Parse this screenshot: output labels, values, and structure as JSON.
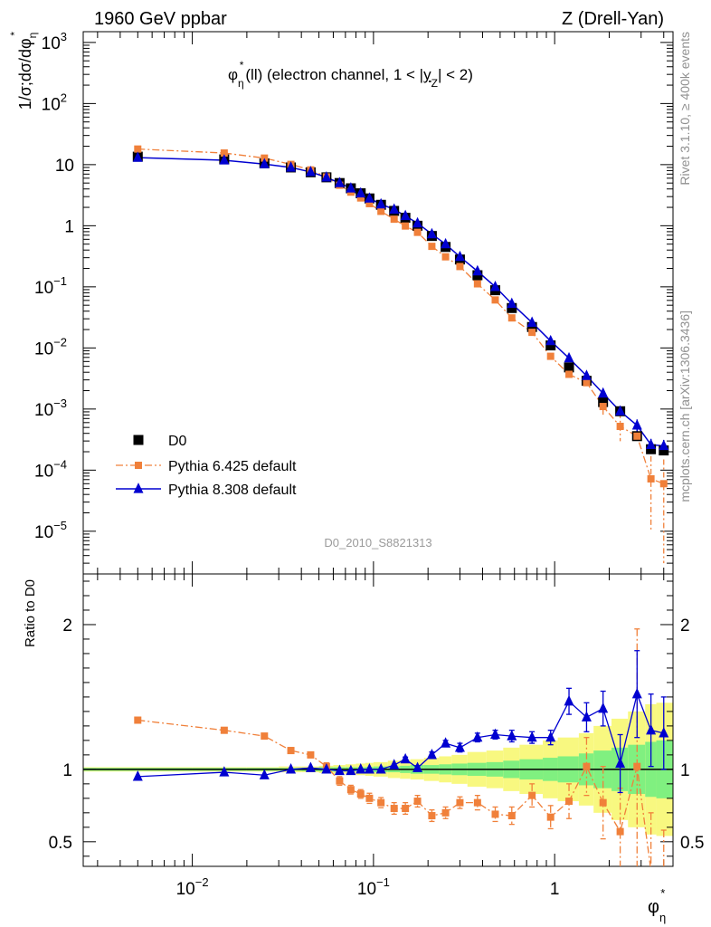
{
  "header": {
    "left": "1960 GeV ppbar",
    "right": "Z (Drell-Yan)"
  },
  "side_labels": {
    "rivet": "Rivet 3.1.10, ≥ 400k events",
    "mcplots": "mcplots.cern.ch [arXiv:1306.3436]"
  },
  "watermark": "D0_2010_S8821313",
  "title": {
    "phi": "φ",
    "sub": "η",
    "sup": "*",
    "rest1": "(ll) (electron channel, 1 < |",
    "y": "y",
    "ysub": "Z",
    "rest2": "| < 2)"
  },
  "ylabel_main": {
    "text": "1/σ;dσ/dφ",
    "sub": "η",
    "sup": "*"
  },
  "ylabel_ratio": "Ratio to D0",
  "xlabel": {
    "phi": "φ",
    "sub": "η",
    "sup": "*"
  },
  "legend": [
    {
      "name": "D0",
      "color": "#000000",
      "marker": "square"
    },
    {
      "name": "Pythia 6.425 default",
      "color": "#f0803a",
      "marker": "square"
    },
    {
      "name": "Pythia 8.308 default",
      "color": "#0000d0",
      "marker": "triangle"
    }
  ],
  "colors": {
    "data": "#000000",
    "pythia6": "#f0803a",
    "pythia8": "#0000d0",
    "band_inner": "#80f080",
    "band_outer": "#f8f880"
  },
  "chart_data": {
    "type": "scatter",
    "x_scale": "log",
    "y_scale": "log",
    "xlim": [
      0.0025,
      4.5
    ],
    "ylim": [
      2e-06,
      1500
    ],
    "ratio_ylim": [
      0.33,
      2.35
    ],
    "x_ticks": [
      {
        "v": 0.01,
        "m": "10",
        "e": "−2"
      },
      {
        "v": 0.1,
        "m": "10",
        "e": "−1"
      },
      {
        "v": 1,
        "m": "1",
        "e": ""
      }
    ],
    "y_ticks": [
      {
        "v": 1e-05,
        "m": "10",
        "e": "−5"
      },
      {
        "v": 0.0001,
        "m": "10",
        "e": "−4"
      },
      {
        "v": 0.001,
        "m": "10",
        "e": "−3"
      },
      {
        "v": 0.01,
        "m": "10",
        "e": "−2"
      },
      {
        "v": 0.1,
        "m": "10",
        "e": "−1"
      },
      {
        "v": 1,
        "m": "1",
        "e": ""
      },
      {
        "v": 10,
        "m": "10",
        "e": ""
      },
      {
        "v": 100,
        "m": "10",
        "e": "2"
      },
      {
        "v": 1000,
        "m": "10",
        "e": "3"
      }
    ],
    "ratio_ticks": [
      0.5,
      1,
      2
    ],
    "x": [
      0.005,
      0.015,
      0.025,
      0.035,
      0.045,
      0.055,
      0.065,
      0.075,
      0.085,
      0.095,
      0.11,
      0.13,
      0.15,
      0.175,
      0.21,
      0.25,
      0.3,
      0.375,
      0.47,
      0.58,
      0.75,
      0.95,
      1.2,
      1.5,
      1.85,
      2.3,
      2.85,
      3.4,
      4.0
    ],
    "series": [
      {
        "name": "D0",
        "values": [
          13.5,
          12.2,
          10.5,
          9.0,
          7.5,
          6.2,
          5.0,
          4.1,
          3.4,
          2.8,
          2.2,
          1.75,
          1.35,
          1.0,
          0.68,
          0.45,
          0.28,
          0.155,
          0.088,
          0.045,
          0.022,
          0.011,
          0.0048,
          0.0029,
          0.0013,
          0.00092,
          0.00036,
          0.00022,
          0.00021
        ]
      },
      {
        "name": "Pythia 6.425 default",
        "values": [
          18.0,
          15.5,
          12.8,
          10.1,
          8.2,
          6.3,
          4.6,
          3.55,
          2.85,
          2.3,
          1.72,
          1.28,
          0.99,
          0.78,
          0.46,
          0.31,
          0.215,
          0.112,
          0.061,
          0.031,
          0.018,
          0.0073,
          0.0037,
          0.0027,
          0.0011,
          0.00052,
          0.00036,
          7.2e-05,
          6e-05
        ],
        "ratio": [
          1.34,
          1.27,
          1.23,
          1.13,
          1.1,
          1.02,
          0.92,
          0.86,
          0.83,
          0.8,
          0.77,
          0.73,
          0.73,
          0.78,
          0.68,
          0.7,
          0.77,
          0.77,
          0.69,
          0.68,
          0.82,
          0.67,
          0.78,
          1.02,
          0.77,
          0.57,
          1.02,
          0.3,
          0.28
        ],
        "ratio_err": [
          0.01,
          0.01,
          0.015,
          0.02,
          0.02,
          0.025,
          0.03,
          0.03,
          0.03,
          0.035,
          0.035,
          0.04,
          0.04,
          0.04,
          0.04,
          0.04,
          0.04,
          0.05,
          0.05,
          0.06,
          0.08,
          0.08,
          0.12,
          0.2,
          0.25,
          0.3,
          0.95,
          0.4,
          0.3
        ]
      },
      {
        "name": "Pythia 8.308 default",
        "values": [
          13.0,
          11.8,
          10.2,
          9.0,
          7.6,
          6.2,
          5.0,
          4.1,
          3.4,
          2.8,
          2.25,
          1.85,
          1.45,
          1.1,
          0.73,
          0.5,
          0.31,
          0.18,
          0.1,
          0.053,
          0.026,
          0.013,
          0.0068,
          0.0035,
          0.0018,
          0.00092,
          0.00054,
          0.00026,
          0.00025
        ],
        "ratio": [
          0.95,
          0.98,
          0.96,
          1.0,
          1.01,
          1.0,
          0.99,
          0.99,
          1.0,
          1.0,
          1.0,
          1.03,
          1.07,
          1.01,
          1.1,
          1.18,
          1.15,
          1.22,
          1.24,
          1.23,
          1.22,
          1.22,
          1.47,
          1.36,
          1.42,
          1.04,
          1.52,
          1.27,
          1.25
        ],
        "ratio_err": [
          0.005,
          0.005,
          0.005,
          0.005,
          0.005,
          0.005,
          0.005,
          0.005,
          0.01,
          0.01,
          0.01,
          0.01,
          0.015,
          0.015,
          0.02,
          0.02,
          0.03,
          0.03,
          0.03,
          0.04,
          0.04,
          0.05,
          0.09,
          0.1,
          0.12,
          0.2,
          0.3,
          0.25,
          0.25
        ]
      }
    ],
    "uncertainty_bands": {
      "x_edges": [
        0.0025,
        0.01,
        0.02,
        0.03,
        0.04,
        0.05,
        0.06,
        0.07,
        0.08,
        0.09,
        0.1,
        0.12,
        0.14,
        0.16,
        0.19,
        0.23,
        0.27,
        0.33,
        0.42,
        0.52,
        0.64,
        0.86,
        1.04,
        1.36,
        1.64,
        2.06,
        2.54,
        3.16,
        3.64,
        4.5
      ],
      "inner": [
        0.01,
        0.01,
        0.01,
        0.01,
        0.012,
        0.015,
        0.015,
        0.015,
        0.015,
        0.017,
        0.02,
        0.02,
        0.025,
        0.03,
        0.03,
        0.035,
        0.04,
        0.045,
        0.05,
        0.06,
        0.07,
        0.08,
        0.09,
        0.11,
        0.13,
        0.15,
        0.17,
        0.19,
        0.2
      ],
      "outer": [
        0.015,
        0.015,
        0.015,
        0.02,
        0.02,
        0.025,
        0.03,
        0.035,
        0.04,
        0.045,
        0.05,
        0.06,
        0.065,
        0.07,
        0.08,
        0.09,
        0.1,
        0.12,
        0.13,
        0.15,
        0.17,
        0.2,
        0.22,
        0.25,
        0.3,
        0.35,
        0.4,
        0.45,
        0.46
      ]
    }
  }
}
